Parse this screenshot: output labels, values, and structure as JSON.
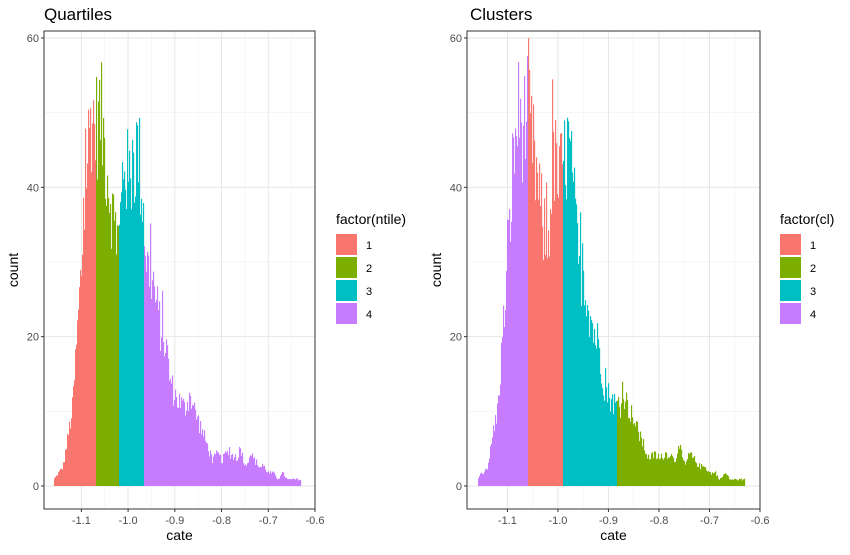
{
  "chart_data": [
    {
      "type": "histogram",
      "title": "Quartiles",
      "xlabel": "cate",
      "ylabel": "count",
      "xlim": [
        -1.18,
        -0.6
      ],
      "ylim": [
        0,
        60
      ],
      "xticks": [
        -1.1,
        -1.0,
        -0.9,
        -0.8,
        -0.7,
        -0.6
      ],
      "xtick_labels": [
        "-1.1",
        "-1.0",
        "-0.9",
        "-0.8",
        "-0.7",
        "-0.6"
      ],
      "yticks": [
        0,
        20,
        40,
        60
      ],
      "ytick_labels": [
        "0",
        "20",
        "40",
        "60"
      ],
      "grid": true,
      "legend": {
        "title": "factor(ntile)",
        "position": "right",
        "entries": [
          {
            "label": "1",
            "color": "#F8766D"
          },
          {
            "label": "2",
            "color": "#7CAE00"
          },
          {
            "label": "3",
            "color": "#00BFC4"
          },
          {
            "label": "4",
            "color": "#C77CFF"
          }
        ]
      },
      "group_ranges": [
        {
          "group": "1",
          "x_from": -1.16,
          "x_to": -1.07
        },
        {
          "group": "2",
          "x_from": -1.07,
          "x_to": -1.02
        },
        {
          "group": "3",
          "x_from": -1.02,
          "x_to": -0.967
        },
        {
          "group": "4",
          "x_from": -0.967,
          "x_to": -0.63
        }
      ],
      "peaks": {
        "x": [
          -1.16,
          -1.14,
          -1.12,
          -1.1,
          -1.09,
          -1.08,
          -1.07,
          -1.06,
          -1.05,
          -1.04,
          -1.03,
          -1.02,
          -1.01,
          -1.0,
          -0.99,
          -0.98,
          -0.97,
          -0.96,
          -0.95,
          -0.94,
          -0.93,
          -0.92,
          -0.91,
          -0.9,
          -0.89,
          -0.88,
          -0.87,
          -0.86,
          -0.85,
          -0.84,
          -0.83,
          -0.82,
          -0.81,
          -0.8,
          -0.79,
          -0.78,
          -0.77,
          -0.76,
          -0.75,
          -0.74,
          -0.73,
          -0.72,
          -0.71,
          -0.7,
          -0.69,
          -0.68,
          -0.67,
          -0.66,
          -0.65,
          -0.64,
          -0.63
        ],
        "y": [
          1,
          3,
          12,
          35,
          50,
          58,
          56,
          58,
          52,
          46,
          40,
          38,
          52,
          47,
          50,
          53,
          45,
          34,
          33,
          28,
          24,
          22,
          16,
          14,
          13,
          12,
          14,
          12,
          10,
          8,
          6,
          4,
          5,
          4,
          5,
          5,
          4,
          6,
          3,
          5,
          4,
          3,
          3,
          2,
          2,
          1,
          2,
          1,
          1,
          1,
          1
        ]
      }
    },
    {
      "type": "histogram",
      "title": "Clusters",
      "xlabel": "cate",
      "ylabel": "count",
      "xlim": [
        -1.18,
        -0.6
      ],
      "ylim": [
        0,
        60
      ],
      "xticks": [
        -1.1,
        -1.0,
        -0.9,
        -0.8,
        -0.7,
        -0.6
      ],
      "xtick_labels": [
        "-1.1",
        "-1.0",
        "-0.9",
        "-0.8",
        "-0.7",
        "-0.6"
      ],
      "yticks": [
        0,
        20,
        40,
        60
      ],
      "ytick_labels": [
        "0",
        "20",
        "40",
        "60"
      ],
      "grid": true,
      "legend": {
        "title": "factor(cl)",
        "position": "right",
        "entries": [
          {
            "label": "1",
            "color": "#F8766D"
          },
          {
            "label": "2",
            "color": "#7CAE00"
          },
          {
            "label": "3",
            "color": "#00BFC4"
          },
          {
            "label": "4",
            "color": "#C77CFF"
          }
        ]
      },
      "group_ranges": [
        {
          "group": "4",
          "x_from": -1.16,
          "x_to": -1.06
        },
        {
          "group": "1",
          "x_from": -1.06,
          "x_to": -0.99
        },
        {
          "group": "3",
          "x_from": -0.99,
          "x_to": -0.885
        },
        {
          "group": "2",
          "x_from": -0.885,
          "x_to": -0.63
        }
      ],
      "peaks": {
        "x": [
          -1.16,
          -1.14,
          -1.12,
          -1.1,
          -1.09,
          -1.08,
          -1.07,
          -1.06,
          -1.05,
          -1.04,
          -1.03,
          -1.02,
          -1.01,
          -1.0,
          -0.99,
          -0.98,
          -0.97,
          -0.96,
          -0.95,
          -0.94,
          -0.93,
          -0.92,
          -0.91,
          -0.9,
          -0.89,
          -0.88,
          -0.87,
          -0.86,
          -0.85,
          -0.84,
          -0.83,
          -0.82,
          -0.81,
          -0.8,
          -0.79,
          -0.78,
          -0.77,
          -0.76,
          -0.75,
          -0.74,
          -0.73,
          -0.72,
          -0.71,
          -0.7,
          -0.69,
          -0.68,
          -0.67,
          -0.66,
          -0.65,
          -0.64,
          -0.63
        ],
        "y": [
          1,
          3,
          12,
          35,
          50,
          58,
          56,
          58,
          52,
          46,
          40,
          38,
          52,
          47,
          50,
          53,
          45,
          34,
          33,
          28,
          24,
          22,
          16,
          14,
          13,
          12,
          14,
          12,
          10,
          8,
          6,
          4,
          5,
          4,
          5,
          5,
          4,
          6,
          3,
          5,
          4,
          3,
          3,
          2,
          2,
          1,
          2,
          1,
          1,
          1,
          1
        ]
      }
    }
  ]
}
